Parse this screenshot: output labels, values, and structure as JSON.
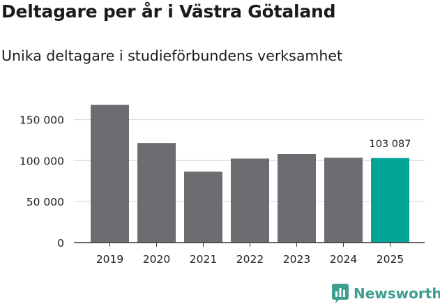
{
  "title": "Deltagare per år i Västra Götaland",
  "subtitle": "Unika deltagare i studieförbundens verksamhet",
  "brand": {
    "name": "Newsworthy",
    "icon": "newsworthy-logo-icon",
    "color": "#3f9e8f"
  },
  "chart_data": {
    "type": "bar",
    "title": "Deltagare per år i Västra Götaland",
    "subtitle": "Unika deltagare i studieförbundens verksamhet",
    "xlabel": "",
    "ylabel": "",
    "categories": [
      "2019",
      "2020",
      "2021",
      "2022",
      "2023",
      "2024",
      "2025"
    ],
    "values": [
      168000,
      121500,
      86500,
      102500,
      108000,
      103500,
      103087
    ],
    "ylim": [
      0,
      170000
    ],
    "yticks": [
      0,
      50000,
      100000,
      150000
    ],
    "ytick_labels": [
      "0",
      "50 000",
      "100 000",
      "150 000"
    ],
    "grid": true,
    "highlight_index": 6,
    "annotation": "103 087",
    "colors": {
      "bar": "#6d6c71",
      "highlight": "#00a598",
      "grid": "#d9d9d9",
      "axis": "#333333"
    }
  }
}
